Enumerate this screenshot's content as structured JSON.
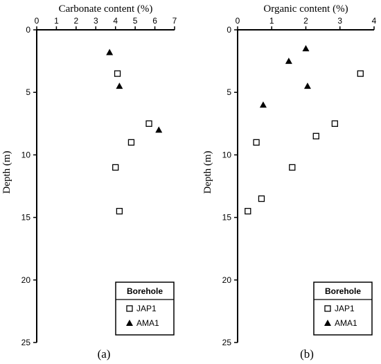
{
  "chart_data": [
    {
      "type": "scatter",
      "panel_label": "(a)",
      "xlabel": "Carbonate content (%)",
      "ylabel": "Depth  (m)",
      "xlim": [
        0,
        7
      ],
      "ylim": [
        0,
        25
      ],
      "y_inverted": true,
      "x_axis_position": "top",
      "xticks": [
        0,
        1,
        2,
        3,
        4,
        5,
        6,
        7
      ],
      "yticks": [
        0,
        5,
        10,
        15,
        20,
        25
      ],
      "grid": false,
      "legend": {
        "title": "Borehole",
        "placement": "bottom-right"
      },
      "series": [
        {
          "name": "JAP1",
          "marker": "open-square",
          "points": [
            [
              4.1,
              3.5
            ],
            [
              5.7,
              7.5
            ],
            [
              4.8,
              9.0
            ],
            [
              4.0,
              11.0
            ],
            [
              4.2,
              14.5
            ]
          ]
        },
        {
          "name": "AMA1",
          "marker": "filled-triangle",
          "points": [
            [
              3.7,
              1.8
            ],
            [
              4.2,
              4.5
            ],
            [
              6.2,
              8.0
            ]
          ]
        }
      ]
    },
    {
      "type": "scatter",
      "panel_label": "(b)",
      "xlabel": "Organic content (%)",
      "ylabel": "Depth  (m)",
      "xlim": [
        0,
        4
      ],
      "ylim": [
        0,
        25
      ],
      "y_inverted": true,
      "x_axis_position": "top",
      "xticks": [
        0,
        1,
        2,
        3,
        4
      ],
      "yticks": [
        0,
        5,
        10,
        15,
        20,
        25
      ],
      "grid": false,
      "legend": {
        "title": "Borehole",
        "placement": "bottom-right"
      },
      "series": [
        {
          "name": "JAP1",
          "marker": "open-square",
          "points": [
            [
              3.6,
              3.5
            ],
            [
              2.85,
              7.5
            ],
            [
              2.3,
              8.5
            ],
            [
              0.55,
              9.0
            ],
            [
              1.6,
              11.0
            ],
            [
              0.7,
              13.5
            ],
            [
              0.3,
              14.5
            ]
          ]
        },
        {
          "name": "AMA1",
          "marker": "filled-triangle",
          "points": [
            [
              2.0,
              1.5
            ],
            [
              1.5,
              2.5
            ],
            [
              2.05,
              4.5
            ],
            [
              0.75,
              6.0
            ]
          ]
        }
      ]
    }
  ]
}
